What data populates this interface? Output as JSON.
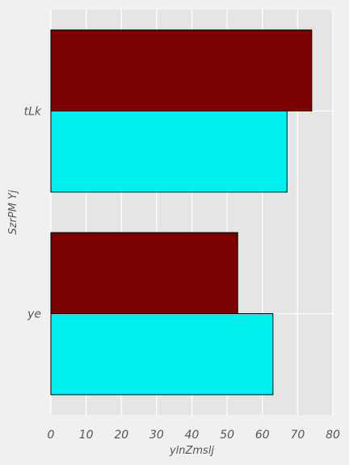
{
  "chart_data": {
    "type": "bar",
    "orientation": "horizontal",
    "categories": [
      "ye",
      "tLk"
    ],
    "series": [
      {
        "values": [
          63,
          67
        ],
        "color": "#00f0f0"
      },
      {
        "values": [
          53,
          74
        ],
        "color": "#7b0000"
      }
    ],
    "xlabel": "ylnZmslj",
    "ylabel": "SzrPM Yj",
    "xlim": [
      0,
      80
    ],
    "xticks": [
      "0",
      "10",
      "20",
      "30",
      "40",
      "50",
      "60",
      "70",
      "80"
    ],
    "grid": true,
    "background_color": "#e5e5e5",
    "figure_color": "#f0f0f0"
  }
}
